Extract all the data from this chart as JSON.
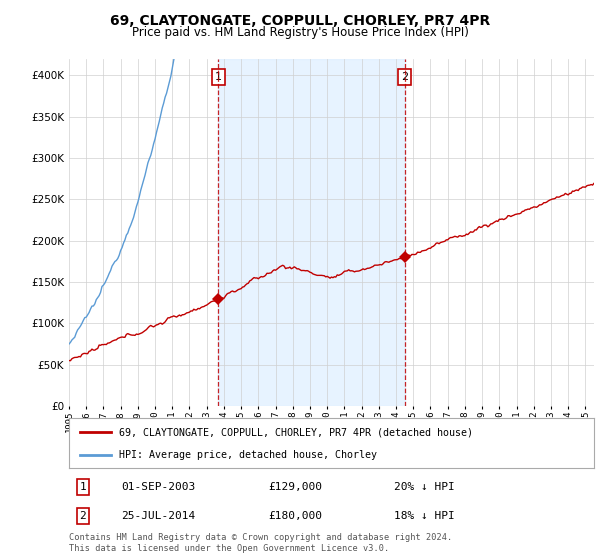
{
  "title": "69, CLAYTONGATE, COPPULL, CHORLEY, PR7 4PR",
  "subtitle": "Price paid vs. HM Land Registry's House Price Index (HPI)",
  "legend_line1": "69, CLAYTONGATE, COPPULL, CHORLEY, PR7 4PR (detached house)",
  "legend_line2": "HPI: Average price, detached house, Chorley",
  "sale1_date": "01-SEP-2003",
  "sale1_price": 129000,
  "sale1_label": "20% ↓ HPI",
  "sale2_date": "25-JUL-2014",
  "sale2_price": 180000,
  "sale2_label": "18% ↓ HPI",
  "footnote1": "Contains HM Land Registry data © Crown copyright and database right 2024.",
  "footnote2": "This data is licensed under the Open Government Licence v3.0.",
  "hpi_color": "#5b9bd5",
  "price_color": "#c00000",
  "vline_color": "#c00000",
  "shade_color": "#ddeeff",
  "background_color": "#ffffff",
  "grid_color": "#d0d0d0",
  "ylim": [
    0,
    420000
  ],
  "yticks": [
    0,
    50000,
    100000,
    150000,
    200000,
    250000,
    300000,
    350000,
    400000
  ],
  "start_year": 1995,
  "end_year": 2025
}
